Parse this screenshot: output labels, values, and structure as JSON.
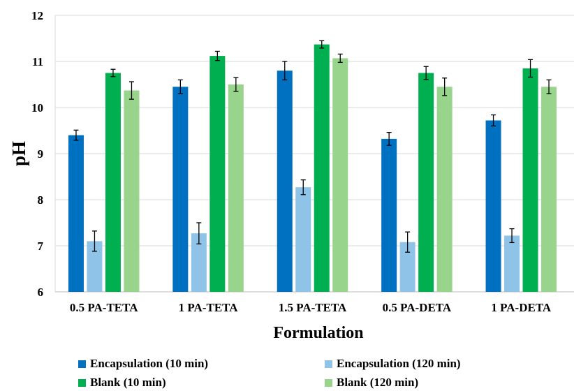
{
  "chart_data": {
    "type": "bar",
    "xlabel": "Formulation",
    "ylabel": "pH",
    "ylim": [
      6,
      12
    ],
    "yticks": [
      6,
      7,
      8,
      9,
      10,
      11,
      12
    ],
    "grid": true,
    "legend_position": "bottom",
    "categories": [
      "0.5 PA-TETA",
      "1 PA-TETA",
      "1.5 PA-TETA",
      "0.5 PA-DETA",
      "1 PA-DETA"
    ],
    "series": [
      {
        "name": "Encapsulation (10 min)",
        "color": "#0070c0",
        "values": [
          9.4,
          10.45,
          10.8,
          9.32,
          9.72
        ],
        "errors": [
          0.11,
          0.15,
          0.2,
          0.14,
          0.12
        ]
      },
      {
        "name": "Encapsulation (120 min)",
        "color": "#8fc3e7",
        "values": [
          7.1,
          7.27,
          8.27,
          7.08,
          7.22
        ],
        "errors": [
          0.22,
          0.23,
          0.16,
          0.22,
          0.15
        ]
      },
      {
        "name": "Blank (10 min)",
        "color": "#00b050",
        "values": [
          10.75,
          11.12,
          11.37,
          10.75,
          10.85
        ],
        "errors": [
          0.08,
          0.1,
          0.08,
          0.14,
          0.19
        ]
      },
      {
        "name": "Blank (120 min)",
        "color": "#99d48c",
        "values": [
          10.37,
          10.5,
          11.07,
          10.45,
          10.45
        ],
        "errors": [
          0.19,
          0.15,
          0.09,
          0.19,
          0.15
        ]
      }
    ]
  }
}
